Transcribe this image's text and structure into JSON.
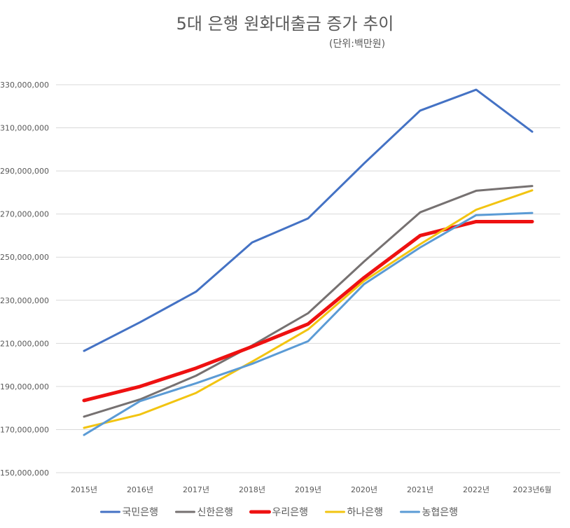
{
  "title": "5대 은행 원화대출금 증가 추이",
  "unit_label": "(단위:백만원)",
  "chart_data": {
    "type": "line",
    "title": "5대 은행 원화대출금 증가 추이",
    "subtitle": "(단위:백만원)",
    "categories": [
      "2015년",
      "2016년",
      "2017년",
      "2018년",
      "2019년",
      "2020년",
      "2021년",
      "2022년",
      "2023년6월"
    ],
    "ylim": [
      150000000,
      330000000
    ],
    "yticks": [
      150000000,
      170000000,
      190000000,
      210000000,
      230000000,
      250000000,
      270000000,
      290000000,
      310000000,
      330000000
    ],
    "ytick_labels": [
      "150,000,000",
      "170,000,000",
      "190,000,000",
      "210,000,000",
      "230,000,000",
      "250,000,000",
      "270,000,000",
      "290,000,000",
      "310,000,000",
      "330,000,000"
    ],
    "grid": true,
    "legend_position": "bottom",
    "series": [
      {
        "name": "국민은행",
        "color": "#4472C4",
        "width": 3,
        "values": [
          206500000,
          219800000,
          234000000,
          256800000,
          268000000,
          293500000,
          318000000,
          327700000,
          308200000
        ]
      },
      {
        "name": "신한은행",
        "color": "#767171",
        "width": 3,
        "values": [
          176000000,
          184000000,
          195000000,
          209000000,
          224000000,
          248000000,
          270800000,
          280800000,
          283000000
        ]
      },
      {
        "name": "우리은행",
        "color": "#EE1111",
        "width": 5,
        "values": [
          183500000,
          190000000,
          198500000,
          208500000,
          219000000,
          240500000,
          260000000,
          266500000,
          266500000
        ]
      },
      {
        "name": "하나은행",
        "color": "#F2C411",
        "width": 3,
        "values": [
          170800000,
          177000000,
          187000000,
          201500000,
          216500000,
          239000000,
          256000000,
          272000000,
          281000000
        ]
      },
      {
        "name": "농협은행",
        "color": "#5B9BD5",
        "width": 3,
        "values": [
          167500000,
          183200000,
          191500000,
          200500000,
          211000000,
          237500000,
          254500000,
          269500000,
          270500000
        ]
      }
    ]
  }
}
